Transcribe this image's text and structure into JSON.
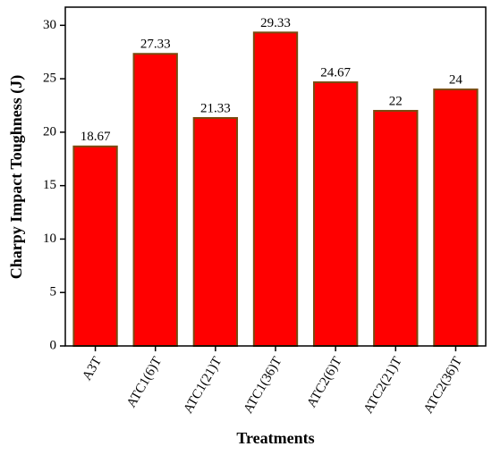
{
  "chart_data": {
    "type": "bar",
    "x_label": "Treatments",
    "y_label": "Charpy Impact Toughness (J)",
    "categories": [
      "A3T",
      "ATC1(6)T",
      "ATC1(21)T",
      "ATC1(36)T",
      "ATC2(6)T",
      "ATC2(21)T",
      "ATC2(36)T"
    ],
    "values": [
      18.67,
      27.33,
      21.33,
      29.33,
      24.67,
      22,
      24
    ],
    "color": "#ff0000",
    "edge_color": "#7a4a10",
    "ylim": [
      0,
      31.7
    ],
    "yticks": [
      0,
      5,
      10,
      15,
      20,
      25,
      30
    ]
  }
}
